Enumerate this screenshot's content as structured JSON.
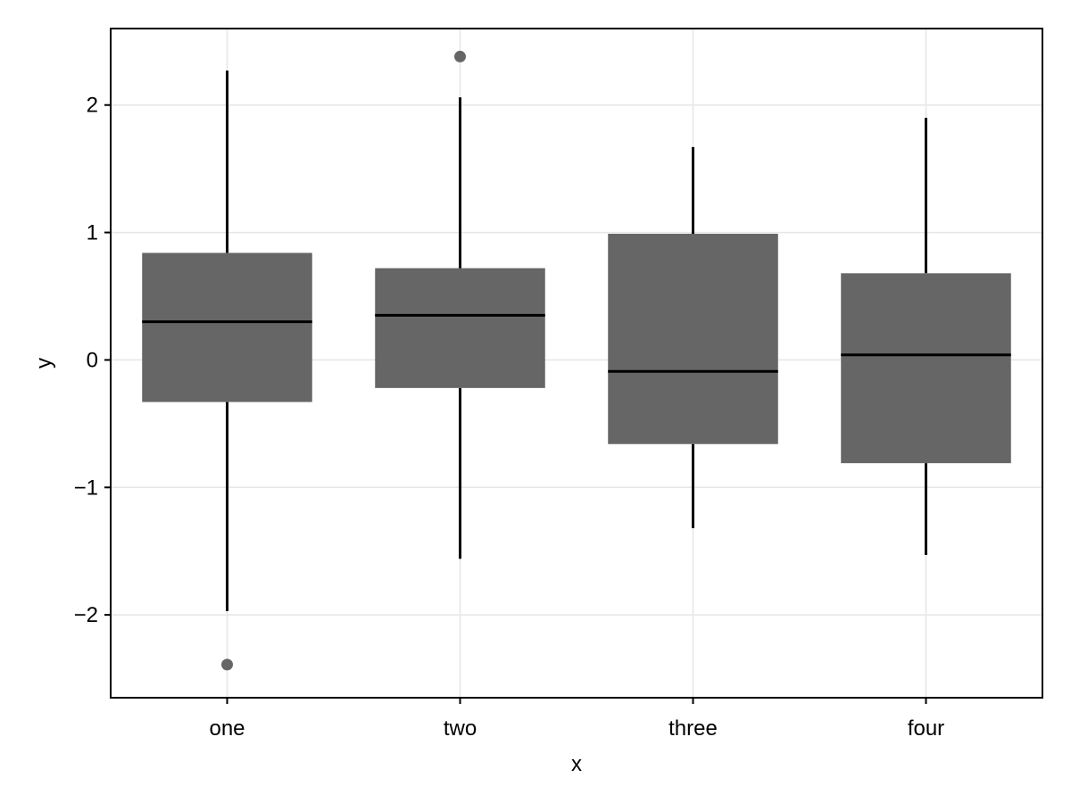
{
  "chart_data": {
    "type": "box",
    "xlabel": "x",
    "ylabel": "y",
    "categories": [
      "one",
      "two",
      "three",
      "four"
    ],
    "ylim": [
      -2.65,
      2.6
    ],
    "yticks": [
      -2,
      -1,
      0,
      1,
      2
    ],
    "ytick_labels": [
      "−2",
      "−1",
      "0",
      "1",
      "2"
    ],
    "grid": true,
    "colors": {
      "box_fill": "#666666",
      "median_line": "#000000",
      "whisker": "#000000",
      "outlier": "#666666",
      "grid": "#e6e6e6",
      "frame": "#000000"
    },
    "boxes": [
      {
        "category": "one",
        "whisker_low": -1.97,
        "q1": -0.33,
        "median": 0.3,
        "q3": 0.84,
        "whisker_high": 2.27,
        "outliers": [
          -2.39
        ]
      },
      {
        "category": "two",
        "whisker_low": -1.56,
        "q1": -0.22,
        "median": 0.35,
        "q3": 0.72,
        "whisker_high": 2.06,
        "outliers": [
          2.38
        ]
      },
      {
        "category": "three",
        "whisker_low": -1.32,
        "q1": -0.66,
        "median": -0.09,
        "q3": 0.99,
        "whisker_high": 1.67,
        "outliers": []
      },
      {
        "category": "four",
        "whisker_low": -1.53,
        "q1": -0.81,
        "median": 0.04,
        "q3": 0.68,
        "whisker_high": 1.9,
        "outliers": []
      }
    ]
  }
}
